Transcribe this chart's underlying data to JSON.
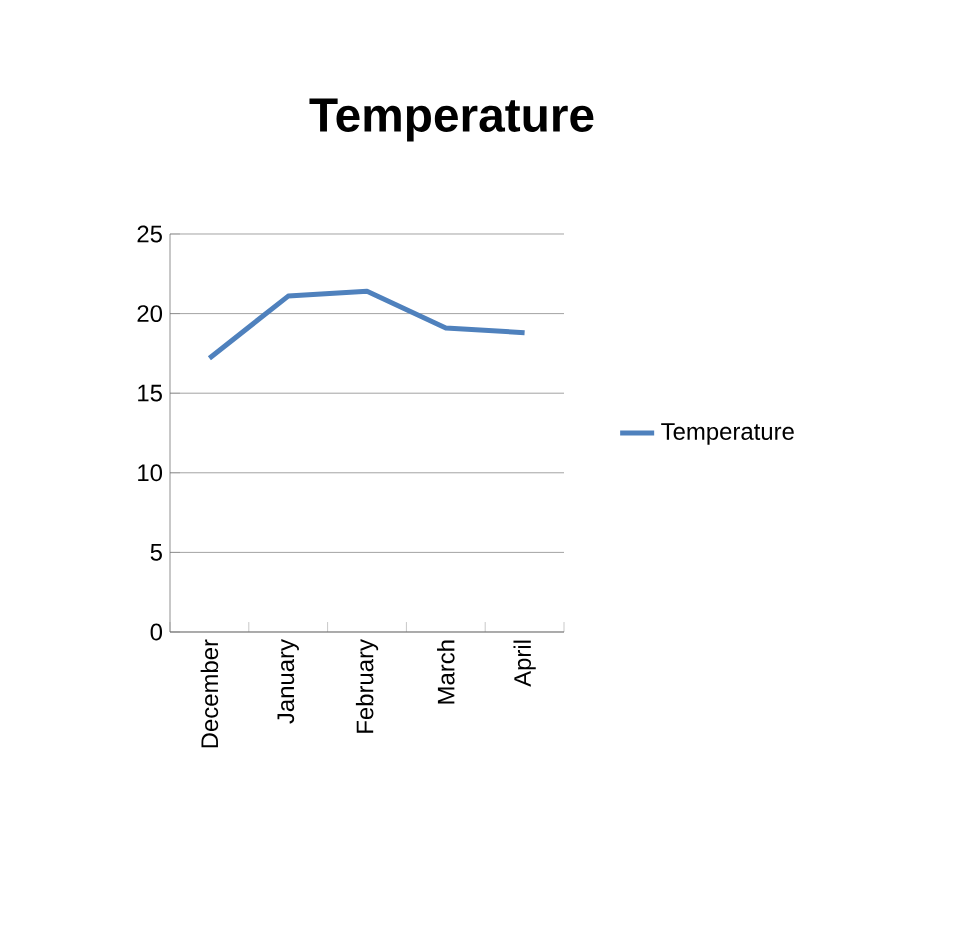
{
  "chart_data": {
    "type": "line",
    "title": "Temperature",
    "categories": [
      "December",
      "January",
      "February",
      "March",
      "April"
    ],
    "series": [
      {
        "name": "Temperature",
        "color": "#4f81bd",
        "values": [
          17.2,
          21.1,
          21.4,
          19.1,
          18.8
        ]
      }
    ],
    "ylim": [
      0,
      25
    ],
    "yticks": [
      0,
      5,
      10,
      15,
      20,
      25
    ],
    "grid": "y",
    "legend": "right",
    "marker": "none"
  }
}
